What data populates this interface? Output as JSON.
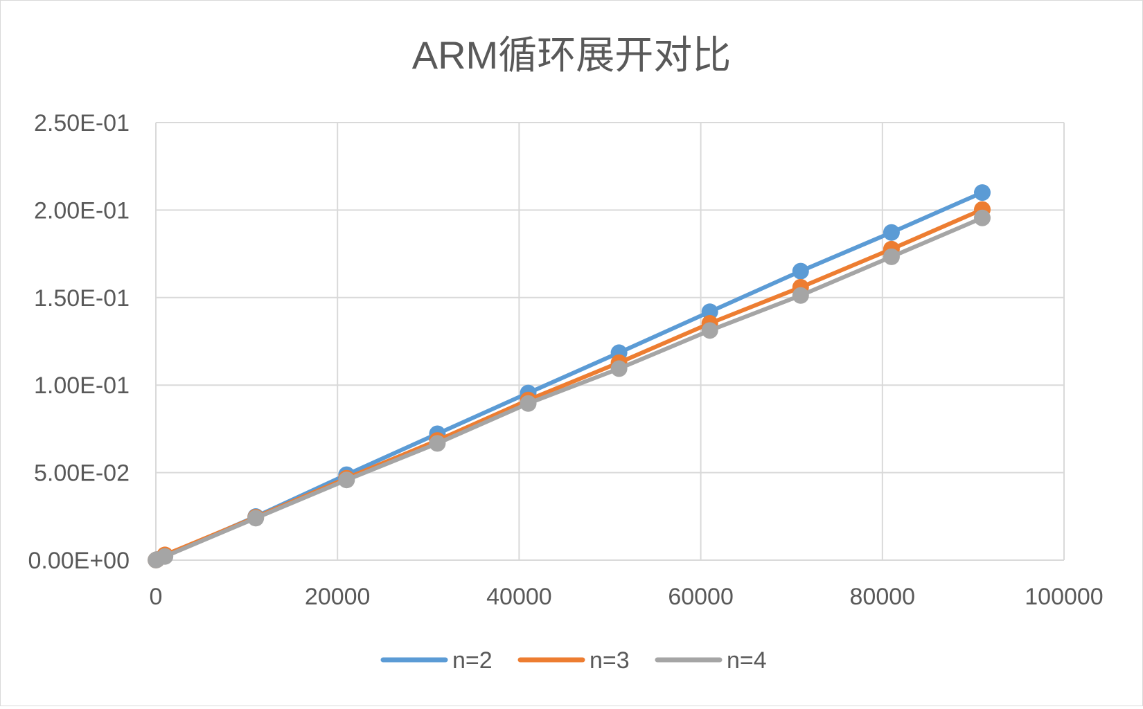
{
  "chart_data": {
    "type": "scatter",
    "mode": "lines+markers",
    "title": "ARM循环展开对比",
    "xlabel": "",
    "ylabel": "",
    "xlim": [
      0,
      100000
    ],
    "ylim": [
      0,
      0.25
    ],
    "x_ticks": [
      0,
      20000,
      40000,
      60000,
      80000,
      100000
    ],
    "x_tick_labels": [
      "0",
      "20000",
      "40000",
      "60000",
      "80000",
      "100000"
    ],
    "y_ticks": [
      0,
      0.05,
      0.1,
      0.15,
      0.2,
      0.25
    ],
    "y_tick_labels": [
      "0.00E+00",
      "5.00E-02",
      "1.00E-01",
      "1.50E-01",
      "2.00E-01",
      "2.50E-01"
    ],
    "grid": true,
    "legend_position": "bottom",
    "x": [
      10,
      100,
      1000,
      11000,
      21000,
      31000,
      41000,
      51000,
      61000,
      71000,
      81000,
      91000
    ],
    "series": [
      {
        "name": "n=2",
        "color": "#5b9bd5",
        "values": [
          3e-05,
          0.0003,
          0.0023,
          0.0249,
          0.0488,
          0.0722,
          0.0955,
          0.1185,
          0.1419,
          0.1651,
          0.1872,
          0.21
        ]
      },
      {
        "name": "n=3",
        "color": "#ed7d31",
        "values": [
          3e-05,
          0.0003,
          0.003,
          0.0245,
          0.0468,
          0.0684,
          0.0915,
          0.1128,
          0.1353,
          0.1559,
          0.1777,
          0.2003
        ]
      },
      {
        "name": "n=4",
        "color": "#a5a5a5",
        "values": [
          3e-05,
          0.0003,
          0.0021,
          0.024,
          0.0458,
          0.0667,
          0.0895,
          0.1094,
          0.1312,
          0.1512,
          0.1733,
          0.1955
        ]
      }
    ]
  }
}
